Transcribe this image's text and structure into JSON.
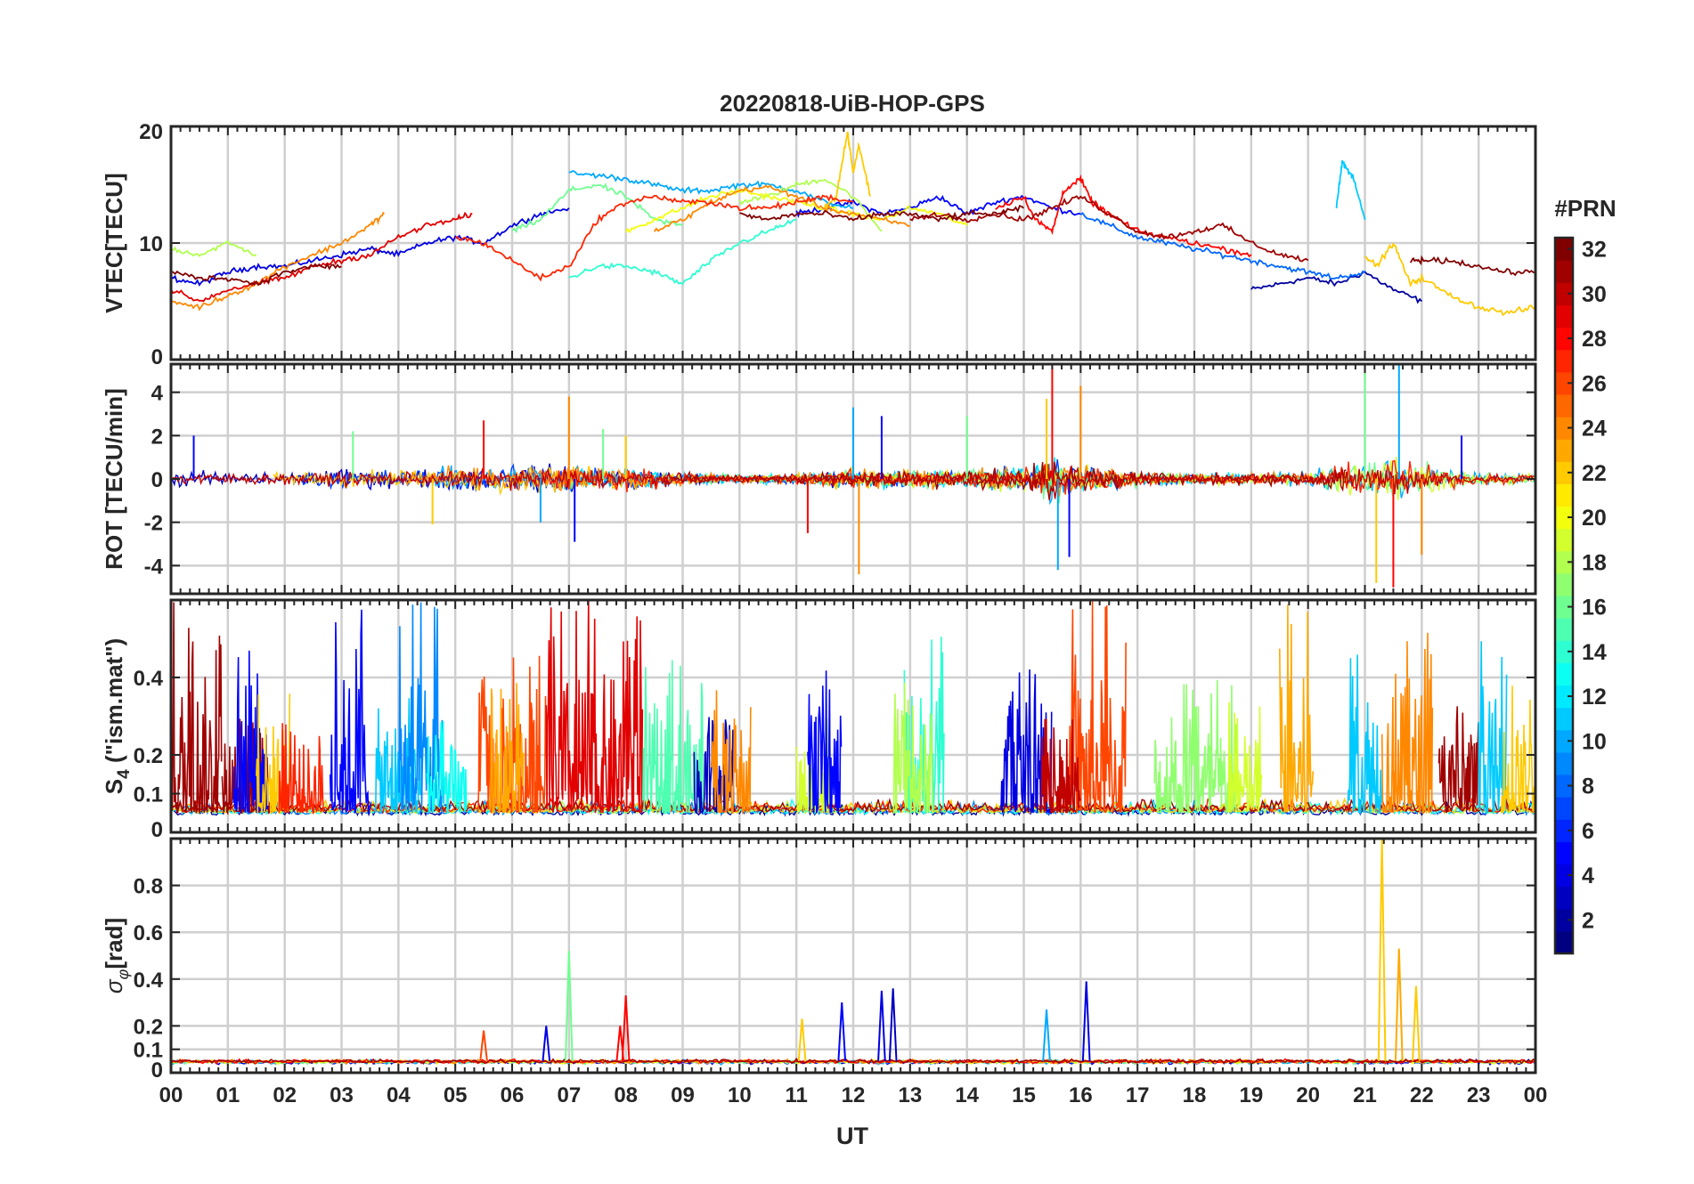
{
  "title": "20220818-UiB-HOP-GPS",
  "colormap": "jet",
  "colorbar": {
    "label": "#PRN",
    "min": 1,
    "max": 32,
    "ticks": [
      2,
      4,
      6,
      8,
      10,
      12,
      14,
      16,
      18,
      20,
      22,
      24,
      26,
      28,
      30,
      32
    ],
    "tick_labels": [
      "2",
      "4",
      "6",
      "8",
      "10",
      "12",
      "14",
      "16",
      "18",
      "20",
      "22",
      "24",
      "26",
      "28",
      "30",
      "32"
    ]
  },
  "x_axis": {
    "label": "UT",
    "range": [
      0,
      24
    ],
    "tick_labels": [
      "00",
      "01",
      "02",
      "03",
      "04",
      "05",
      "06",
      "07",
      "08",
      "09",
      "10",
      "11",
      "12",
      "13",
      "14",
      "15",
      "16",
      "17",
      "18",
      "19",
      "20",
      "21",
      "22",
      "23",
      "00"
    ]
  },
  "chart_data": [
    {
      "id": "vtec",
      "type": "line",
      "ylabel": "VTEC[TECU]",
      "ylim": [
        0,
        20
      ],
      "yticks": [
        0,
        10,
        20
      ],
      "ytick_labels": [
        "0",
        "10",
        "20"
      ],
      "grid": true,
      "series": [
        {
          "prn": 2,
          "x": [
            19.0,
            19.5,
            20.0,
            20.5,
            21.0,
            21.5,
            22.0
          ],
          "y": [
            6.0,
            6.5,
            7.0,
            6.5,
            7.5,
            6.0,
            5.0
          ]
        },
        {
          "prn": 4,
          "x": [
            0.0,
            0.5,
            1.0,
            1.5,
            2.0,
            2.5,
            3.0,
            3.5,
            4.0,
            4.5,
            5.0,
            5.5,
            6.0,
            6.5,
            7.0
          ],
          "y": [
            7.0,
            6.5,
            7.5,
            8.0,
            8.0,
            8.5,
            9.0,
            9.5,
            9.0,
            10.0,
            10.5,
            10.0,
            11.5,
            12.5,
            13.0
          ]
        },
        {
          "prn": 5,
          "x": [
            11.0,
            11.5,
            12.0,
            12.5,
            13.0,
            13.5,
            14.0,
            14.5,
            15.0,
            15.5,
            16.0
          ],
          "y": [
            12.5,
            13.0,
            13.5,
            12.5,
            13.0,
            14.0,
            12.5,
            13.5,
            14.0,
            13.0,
            12.5
          ]
        },
        {
          "prn": 8,
          "x": [
            16.0,
            16.5,
            17.0,
            17.5,
            18.0,
            18.5,
            19.0,
            19.5,
            20.0,
            20.5,
            21.0
          ],
          "y": [
            12.5,
            11.5,
            10.5,
            10.0,
            9.5,
            9.0,
            8.5,
            8.0,
            7.5,
            7.0,
            7.5
          ]
        },
        {
          "prn": 10,
          "x": [
            7.0,
            7.5,
            8.0,
            8.5,
            9.0,
            9.5,
            10.0,
            10.5,
            11.0,
            11.5,
            12.0
          ],
          "y": [
            16.0,
            15.8,
            15.5,
            15.0,
            14.5,
            14.5,
            15.0,
            15.0,
            14.5,
            13.5,
            13.0
          ]
        },
        {
          "prn": 11,
          "x": [
            20.5,
            20.6,
            20.8,
            21.0
          ],
          "y": [
            13.0,
            17.0,
            15.5,
            12.0
          ]
        },
        {
          "prn": 14,
          "x": [
            7.0,
            7.5,
            8.0,
            8.5,
            9.0,
            9.5,
            10.0,
            10.5,
            11.0
          ],
          "y": [
            7.0,
            8.0,
            8.0,
            7.5,
            6.5,
            8.5,
            10.0,
            11.0,
            12.0
          ]
        },
        {
          "prn": 16,
          "x": [
            6.0,
            6.5,
            7.0,
            7.5,
            8.0,
            8.5,
            9.0
          ],
          "y": [
            11.0,
            12.0,
            14.5,
            15.0,
            14.0,
            12.0,
            11.5
          ]
        },
        {
          "prn": 18,
          "x": [
            0.0,
            0.5,
            1.0,
            1.5
          ],
          "y": [
            9.5,
            9.0,
            10.0,
            9.0
          ]
        },
        {
          "prn": 18,
          "x": [
            10.0,
            10.5,
            11.0,
            11.5,
            12.0,
            12.5
          ],
          "y": [
            13.5,
            14.0,
            15.0,
            15.5,
            14.0,
            11.0
          ]
        },
        {
          "prn": 20,
          "x": [
            8.0,
            8.5,
            9.0,
            9.5,
            10.0,
            10.5,
            11.0,
            11.5,
            12.0,
            12.5,
            13.0,
            13.5,
            14.0
          ],
          "y": [
            11.0,
            12.0,
            13.0,
            14.0,
            14.5,
            14.0,
            13.5,
            13.0,
            12.5,
            12.0,
            13.0,
            12.5,
            11.5
          ]
        },
        {
          "prn": 22,
          "x": [
            11.5,
            11.7,
            11.9,
            12.0,
            12.1,
            12.3
          ],
          "y": [
            13.0,
            14.0,
            19.5,
            16.0,
            18.5,
            14.0
          ]
        },
        {
          "prn": 22,
          "x": [
            21.0,
            21.2,
            21.5,
            21.8,
            22.0,
            22.5,
            23.0,
            23.5,
            24.0
          ],
          "y": [
            9.0,
            8.0,
            10.0,
            6.5,
            7.0,
            5.5,
            4.5,
            4.0,
            4.5
          ]
        },
        {
          "prn": 24,
          "x": [
            0.0,
            0.5,
            1.0,
            1.5,
            2.0,
            2.5,
            3.0,
            3.5,
            3.75
          ],
          "y": [
            5.0,
            4.5,
            5.5,
            6.5,
            8.0,
            9.0,
            10.0,
            11.5,
            12.5
          ]
        },
        {
          "prn": 24,
          "x": [
            8.5,
            9.0,
            9.5,
            10.0,
            10.5,
            11.0,
            11.5,
            12.0,
            12.5,
            13.0
          ],
          "y": [
            11.0,
            12.0,
            13.5,
            14.5,
            14.8,
            14.0,
            13.0,
            12.5,
            12.0,
            11.5
          ]
        },
        {
          "prn": 27,
          "x": [
            5.0,
            5.5,
            6.0,
            6.5,
            7.0,
            7.5,
            8.0,
            8.5,
            9.0,
            9.5,
            10.0,
            10.5,
            11.0,
            11.5,
            12.0
          ],
          "y": [
            10.5,
            10.0,
            8.5,
            7.0,
            8.0,
            12.0,
            13.5,
            14.0,
            13.5,
            13.5,
            13.0,
            13.0,
            13.5,
            14.0,
            13.5
          ]
        },
        {
          "prn": 28,
          "x": [
            14.5,
            15.0,
            15.2,
            15.5,
            15.7,
            16.0,
            16.2,
            16.5,
            17.0,
            17.5,
            18.0,
            18.5,
            19.0
          ],
          "y": [
            13.0,
            14.0,
            12.0,
            11.0,
            14.5,
            15.5,
            13.5,
            12.5,
            11.0,
            10.5,
            10.0,
            9.5,
            9.0
          ]
        },
        {
          "prn": 29,
          "x": [
            0.0,
            0.5,
            1.0,
            1.5,
            2.0,
            2.5,
            3.0,
            3.5,
            4.0,
            4.5,
            5.0,
            5.3
          ],
          "y": [
            6.0,
            5.0,
            6.0,
            6.5,
            7.0,
            8.0,
            8.5,
            9.0,
            10.5,
            11.5,
            12.0,
            12.5
          ]
        },
        {
          "prn": 31,
          "x": [
            13.0,
            13.5,
            14.0,
            14.5,
            15.0,
            15.5,
            16.0,
            16.5,
            17.0,
            17.5,
            18.0,
            18.5,
            19.0,
            19.5,
            20.0
          ],
          "y": [
            12.0,
            12.5,
            12.0,
            12.5,
            12.0,
            13.0,
            14.0,
            12.5,
            11.0,
            10.5,
            11.0,
            11.5,
            10.0,
            9.0,
            8.5
          ]
        },
        {
          "prn": 32,
          "x": [
            0.0,
            0.5,
            1.0,
            1.5,
            2.0,
            2.5,
            3.0
          ],
          "y": [
            7.5,
            7.0,
            7.0,
            6.5,
            7.5,
            8.0,
            8.0
          ]
        },
        {
          "prn": 32,
          "x": [
            10.0,
            10.5,
            11.0,
            11.5,
            12.0,
            12.5,
            13.0,
            13.5,
            14.0,
            14.5,
            15.0
          ],
          "y": [
            12.5,
            12.0,
            12.5,
            12.5,
            12.0,
            12.5,
            12.5,
            12.0,
            12.5,
            12.5,
            13.0
          ]
        },
        {
          "prn": 32,
          "x": [
            21.8,
            22.0,
            22.5,
            23.0,
            23.5,
            24.0
          ],
          "y": [
            8.5,
            8.5,
            8.5,
            8.0,
            7.5,
            7.5
          ]
        }
      ]
    },
    {
      "id": "rot",
      "type": "line",
      "ylabel": "ROT [TECU/min]",
      "ylim": [
        -5.3,
        5.3
      ],
      "yticks": [
        -4,
        -2,
        0,
        2,
        4
      ],
      "ytick_labels": [
        "-4",
        "-2",
        "0",
        "2",
        "4"
      ],
      "grid": true,
      "envelope": {
        "x": [
          0,
          1,
          2,
          3,
          4,
          5,
          6,
          7,
          8,
          9,
          10,
          11,
          12,
          13,
          14,
          15,
          15.5,
          16,
          17,
          18,
          19,
          20,
          21,
          21.5,
          22,
          23,
          24
        ],
        "amplitude": [
          1.0,
          0.8,
          0.7,
          1.0,
          1.0,
          1.2,
          1.3,
          1.5,
          1.2,
          0.7,
          0.4,
          0.6,
          1.0,
          0.9,
          1.0,
          1.3,
          2.5,
          1.5,
          0.8,
          0.6,
          0.6,
          0.7,
          2.0,
          2.5,
          1.5,
          0.6,
          0.6
        ]
      },
      "spikes": [
        {
          "x": 0.4,
          "y": 2.0
        },
        {
          "x": 3.2,
          "y": 2.2
        },
        {
          "x": 4.6,
          "y": -2.1
        },
        {
          "x": 5.5,
          "y": 2.7
        },
        {
          "x": 6.5,
          "y": -2.0
        },
        {
          "x": 7.0,
          "y": 3.8
        },
        {
          "x": 7.1,
          "y": -2.9
        },
        {
          "x": 7.6,
          "y": 2.3
        },
        {
          "x": 8.0,
          "y": 2.0
        },
        {
          "x": 11.2,
          "y": -2.5
        },
        {
          "x": 12.0,
          "y": 3.3
        },
        {
          "x": 12.1,
          "y": -4.4
        },
        {
          "x": 12.5,
          "y": 2.9
        },
        {
          "x": 14.0,
          "y": 2.9
        },
        {
          "x": 15.4,
          "y": 3.7
        },
        {
          "x": 15.5,
          "y": 5.3
        },
        {
          "x": 15.6,
          "y": -4.2
        },
        {
          "x": 16.0,
          "y": 4.3
        },
        {
          "x": 15.8,
          "y": -3.6
        },
        {
          "x": 21.0,
          "y": 5.0
        },
        {
          "x": 21.2,
          "y": -4.8
        },
        {
          "x": 21.5,
          "y": -5.0
        },
        {
          "x": 21.6,
          "y": 5.3
        },
        {
          "x": 22.0,
          "y": -3.5
        },
        {
          "x": 22.7,
          "y": 2.0
        }
      ]
    },
    {
      "id": "s4",
      "type": "line",
      "ylabel": "S4 (\"ism.mat\")",
      "ylim": [
        0,
        0.6
      ],
      "yticks": [
        0,
        0.1,
        0.2,
        0.4
      ],
      "ytick_labels": [
        "0",
        "0.1",
        "0.2",
        "0.4"
      ],
      "grid": true,
      "bursts": [
        {
          "prn": 31,
          "x0": 0.0,
          "x1": 0.9,
          "peak": 0.6
        },
        {
          "prn": 31,
          "x0": 0.9,
          "x1": 1.8,
          "peak": 0.3
        },
        {
          "prn": 5,
          "x0": 1.1,
          "x1": 1.7,
          "peak": 0.5
        },
        {
          "prn": 22,
          "x0": 1.5,
          "x1": 2.1,
          "peak": 0.4
        },
        {
          "prn": 27,
          "x0": 1.9,
          "x1": 2.7,
          "peak": 0.3
        },
        {
          "prn": 5,
          "x0": 2.8,
          "x1": 3.5,
          "peak": 0.6
        },
        {
          "prn": 11,
          "x0": 3.6,
          "x1": 4.4,
          "peak": 0.45
        },
        {
          "prn": 9,
          "x0": 4.0,
          "x1": 4.8,
          "peak": 0.6
        },
        {
          "prn": 13,
          "x0": 4.5,
          "x1": 5.2,
          "peak": 0.3
        },
        {
          "prn": 26,
          "x0": 5.4,
          "x1": 6.6,
          "peak": 0.5
        },
        {
          "prn": 23,
          "x0": 5.6,
          "x1": 6.2,
          "peak": 0.4
        },
        {
          "prn": 29,
          "x0": 6.6,
          "x1": 8.3,
          "peak": 0.6
        },
        {
          "prn": 15,
          "x0": 8.3,
          "x1": 9.4,
          "peak": 0.45
        },
        {
          "prn": 3,
          "x0": 9.2,
          "x1": 9.9,
          "peak": 0.3
        },
        {
          "prn": 24,
          "x0": 9.5,
          "x1": 10.2,
          "peak": 0.4
        },
        {
          "prn": 19,
          "x0": 11.0,
          "x1": 11.6,
          "peak": 0.3
        },
        {
          "prn": 5,
          "x0": 11.2,
          "x1": 11.8,
          "peak": 0.42
        },
        {
          "prn": 14,
          "x0": 12.9,
          "x1": 13.6,
          "peak": 0.55
        },
        {
          "prn": 18,
          "x0": 12.7,
          "x1": 13.4,
          "peak": 0.4
        },
        {
          "prn": 4,
          "x0": 14.6,
          "x1": 15.5,
          "peak": 0.45
        },
        {
          "prn": 26,
          "x0": 15.8,
          "x1": 16.8,
          "peak": 0.6
        },
        {
          "prn": 30,
          "x0": 15.3,
          "x1": 16.0,
          "peak": 0.3
        },
        {
          "prn": 17,
          "x0": 17.3,
          "x1": 18.8,
          "peak": 0.4
        },
        {
          "prn": 19,
          "x0": 18.6,
          "x1": 19.2,
          "peak": 0.35
        },
        {
          "prn": 23,
          "x0": 19.5,
          "x1": 20.1,
          "peak": 0.6
        },
        {
          "prn": 11,
          "x0": 20.7,
          "x1": 21.3,
          "peak": 0.6
        },
        {
          "prn": 24,
          "x0": 21.3,
          "x1": 22.2,
          "peak": 0.55
        },
        {
          "prn": 31,
          "x0": 22.3,
          "x1": 23.0,
          "peak": 0.35
        },
        {
          "prn": 11,
          "x0": 23.0,
          "x1": 23.5,
          "peak": 0.5
        },
        {
          "prn": 22,
          "x0": 23.4,
          "x1": 24.0,
          "peak": 0.4
        }
      ]
    },
    {
      "id": "sigma_phi",
      "type": "line",
      "ylabel": "σφ[rad]",
      "ylim": [
        0,
        1.0
      ],
      "yticks": [
        0,
        0.1,
        0.2,
        0.4,
        0.6,
        0.8
      ],
      "ytick_labels": [
        "0",
        "0.1",
        "0.2",
        "0.4",
        "0.6",
        "0.8"
      ],
      "grid": true,
      "baseline": 0.05,
      "spikes": [
        {
          "prn": 26,
          "x": 5.5,
          "y": 0.18
        },
        {
          "prn": 4,
          "x": 6.6,
          "y": 0.2
        },
        {
          "prn": 16,
          "x": 7.0,
          "y": 0.52
        },
        {
          "prn": 28,
          "x": 7.9,
          "y": 0.2
        },
        {
          "prn": 28,
          "x": 8.0,
          "y": 0.33
        },
        {
          "prn": 22,
          "x": 11.1,
          "y": 0.23
        },
        {
          "prn": 5,
          "x": 11.8,
          "y": 0.3
        },
        {
          "prn": 4,
          "x": 12.5,
          "y": 0.35
        },
        {
          "prn": 3,
          "x": 12.7,
          "y": 0.36
        },
        {
          "prn": 10,
          "x": 15.4,
          "y": 0.27
        },
        {
          "prn": 4,
          "x": 16.1,
          "y": 0.39
        },
        {
          "prn": 22,
          "x": 21.3,
          "y": 1.0
        },
        {
          "prn": 23,
          "x": 21.6,
          "y": 0.53
        },
        {
          "prn": 22,
          "x": 21.9,
          "y": 0.37
        }
      ]
    }
  ]
}
